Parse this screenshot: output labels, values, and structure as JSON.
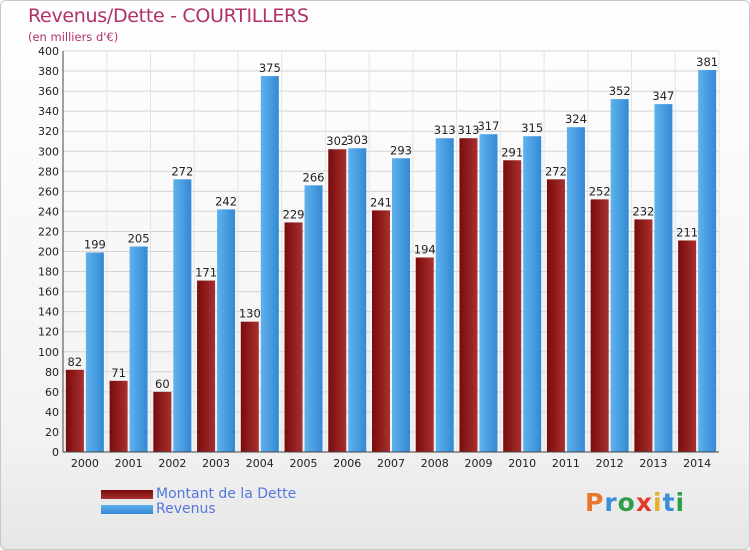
{
  "title": "Revenus/Dette - COURTILLERS",
  "subtitle": "(en milliers d'€)",
  "logo_text": "Proxiti",
  "logo_colors": [
    "#e8762b",
    "#3b8fd8",
    "#2e9e4a",
    "#e23b2b",
    "#e2b22b",
    "#3b8fd8",
    "#2e9e4a"
  ],
  "colors": {
    "dette": "#7a0b0b",
    "dette_light": "#a83030",
    "revenus": "#3389d3",
    "revenus_light": "#5fb2ee",
    "title": "#b0306a",
    "legend_text": "#5577dd"
  },
  "chart_data": {
    "type": "bar",
    "title": "Revenus/Dette - COURTILLERS",
    "subtitle": "(en milliers d'€)",
    "categories": [
      "2000",
      "2001",
      "2002",
      "2003",
      "2004",
      "2005",
      "2006",
      "2007",
      "2008",
      "2009",
      "2010",
      "2011",
      "2012",
      "2013",
      "2014"
    ],
    "series": [
      {
        "name": "Montant de la Dette",
        "values": [
          82,
          71,
          60,
          171,
          130,
          229,
          302,
          241,
          194,
          313,
          291,
          272,
          252,
          232,
          211
        ]
      },
      {
        "name": "Revenus",
        "values": [
          199,
          205,
          272,
          242,
          375,
          266,
          303,
          293,
          313,
          317,
          315,
          324,
          352,
          347,
          381
        ]
      }
    ],
    "ylim": [
      0,
      400
    ],
    "ytick_step": 20,
    "grid": true,
    "legend_position": "bottom-left"
  }
}
